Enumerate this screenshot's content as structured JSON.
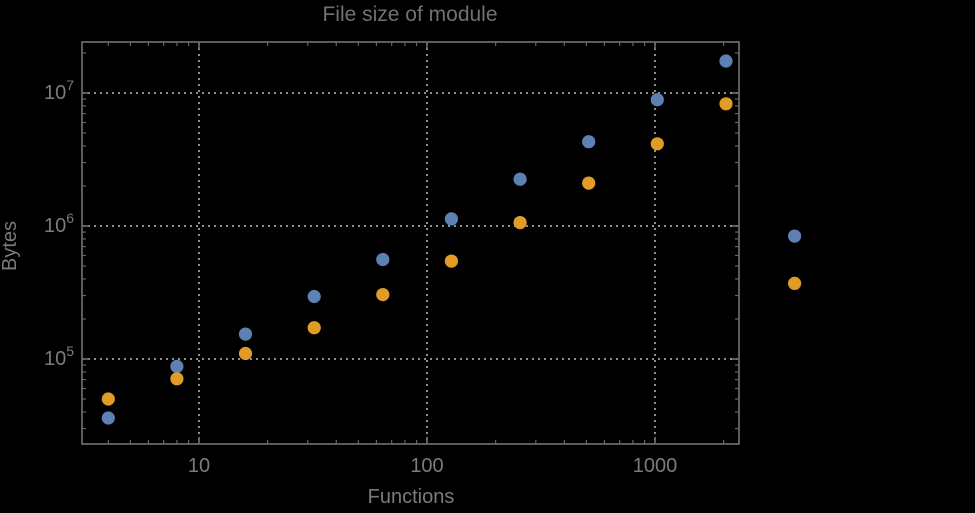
{
  "colors": {
    "background": "#000000",
    "frame": "#666666",
    "grid": "#909090",
    "label": "#7b7b7b",
    "title": "#717171"
  },
  "chart_data": {
    "type": "scatter",
    "title": "File size of module",
    "xlabel": "Functions",
    "ylabel": "Bytes",
    "x_scale": "log",
    "y_scale": "log",
    "xlim": [
      3.1,
      2365
    ],
    "ylim": [
      22000,
      23400000
    ],
    "grid": true,
    "legend": "none",
    "x_ticks": [
      {
        "value": 10,
        "label": "10"
      },
      {
        "value": 100,
        "label": "100"
      },
      {
        "value": 1000,
        "label": "1000"
      }
    ],
    "y_ticks": [
      {
        "value": 100000,
        "base": "10",
        "exp": "5"
      },
      {
        "value": 1000000,
        "base": "10",
        "exp": "6"
      },
      {
        "value": 10000000,
        "base": "10",
        "exp": "7"
      }
    ],
    "series": [
      {
        "name": "blue",
        "color": "#5E81B5",
        "x": [
          4,
          8,
          16,
          32,
          64,
          128,
          256,
          512,
          1024,
          2048,
          4096
        ],
        "y": [
          36000,
          88000,
          154000,
          295000,
          560000,
          1130000,
          2250000,
          4300000,
          8900000,
          17400000,
          840000
        ]
      },
      {
        "name": "orange",
        "color": "#E09C24",
        "x": [
          4,
          8,
          16,
          32,
          64,
          128,
          256,
          512,
          1024,
          2048,
          4096
        ],
        "y": [
          50000,
          71000,
          110000,
          172000,
          305000,
          545000,
          1060000,
          2100000,
          4150000,
          8300000,
          370000
        ]
      }
    ]
  }
}
